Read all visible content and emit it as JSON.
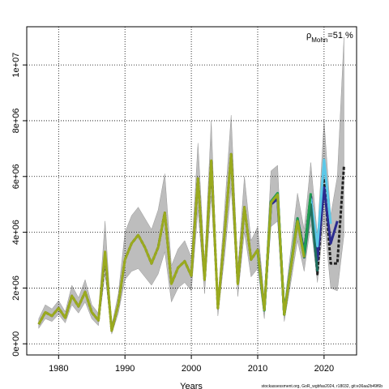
{
  "chart_data": {
    "type": "line",
    "x_label": "Years",
    "annotation": {
      "symbol": "ρ",
      "sub": "Mohn",
      "text": "=51 %"
    },
    "footer": "stockassessment.org, GoR_wgbfas2024, r18032, git:e36aa2b49f6b",
    "x": [
      1977,
      1978,
      1979,
      1980,
      1981,
      1982,
      1983,
      1984,
      1985,
      1986,
      1987,
      1988,
      1989,
      1990,
      1991,
      1992,
      1993,
      1994,
      1995,
      1996,
      1997,
      1998,
      1999,
      2000,
      2001,
      2002,
      2003,
      2004,
      2005,
      2006,
      2007,
      2008,
      2009,
      2010,
      2011,
      2012,
      2013,
      2014,
      2015,
      2016,
      2017,
      2018,
      2019,
      2020,
      2021,
      2022,
      2023
    ],
    "xlim": [
      1975.2,
      2024.9
    ],
    "xticks": [
      1980,
      1990,
      2000,
      2010,
      2020
    ],
    "ylim": [
      -400000.0,
      11370000.0
    ],
    "yticks": [
      {
        "value": 0,
        "label": "0e+00"
      },
      {
        "value": 2000000.0,
        "label": "2e+06"
      },
      {
        "value": 4000000.0,
        "label": "4e+06"
      },
      {
        "value": 6000000.0,
        "label": "6e+06"
      },
      {
        "value": 8000000.0,
        "label": "8e+06"
      },
      {
        "value": 10000000.0,
        "label": "1e+07"
      }
    ],
    "grid": true,
    "band": {
      "color": "#bdbdbd",
      "lower": [
        550000.0,
        900000.0,
        800000.0,
        1050000.0,
        750000.0,
        1400000.0,
        1100000.0,
        1500000.0,
        900000.0,
        650000.0,
        2500000.0,
        350000.0,
        1100000.0,
        2300000.0,
        2600000.0,
        2700000.0,
        2400000.0,
        2100000.0,
        2500000.0,
        3300000.0,
        1500000.0,
        2000000.0,
        2200000.0,
        1900000.0,
        4800000.0,
        1800000.0,
        5300000.0,
        1000000.0,
        3100000.0,
        5600000.0,
        1700000.0,
        4000000.0,
        2400000.0,
        2700000.0,
        900000.0,
        4200000.0,
        4400000.0,
        800000.0,
        2200000.0,
        3700000.0,
        2600000.0,
        4300000.0,
        2200000.0,
        4500000.0,
        2000000.0,
        1900000.0,
        3900000.0
      ],
      "upper": [
        900000.0,
        1400000.0,
        1250000.0,
        1550000.0,
        1150000.0,
        2100000.0,
        1650000.0,
        2300000.0,
        1400000.0,
        1100000.0,
        4400000.0,
        650000.0,
        1800000.0,
        4000000.0,
        4600000.0,
        4900000.0,
        4500000.0,
        4100000.0,
        4800000.0,
        6100000.0,
        2800000.0,
        3400000.0,
        3700000.0,
        3100000.0,
        7200000.0,
        2900000.0,
        8000000.0,
        1600000.0,
        4800000.0,
        8200000.0,
        2700000.0,
        6000000.0,
        3700000.0,
        4200000.0,
        1600000.0,
        6200000.0,
        6400000.0,
        1350000.0,
        3400000.0,
        5400000.0,
        4100000.0,
        6500000.0,
        3900000.0,
        8000000.0,
        4600000.0,
        6000000.0,
        11000000.0
      ]
    },
    "series": [
      {
        "color": "#222222",
        "dash": true,
        "values": [
          700000.0,
          1130000.0,
          1000000.0,
          1280000.0,
          930000.0,
          1720000.0,
          1340000.0,
          1860000.0,
          1130000.0,
          840000.0,
          3170000.0,
          470000.0,
          1420000.0,
          3020000.0,
          3600000.0,
          3900000.0,
          3460000.0,
          2880000.0,
          3460000.0,
          4700000.0,
          2150000.0,
          2730000.0,
          2960000.0,
          2440000.0,
          5930000.0,
          2300000.0,
          6570000.0,
          1280000.0,
          3900000.0,
          6800000.0,
          2150000.0,
          4900000.0,
          3020000.0,
          3370000.0,
          1220000.0,
          5060000.0,
          5350000.0,
          1050000.0,
          2730000.0,
          4480000.0,
          3310000.0,
          5350000.0,
          2500000.0,
          5930000.0,
          2880000.0,
          2880000.0,
          6370000.0
        ]
      },
      {
        "color": "#2b2b8f",
        "values": [
          null,
          null,
          null,
          null,
          null,
          null,
          null,
          null,
          null,
          null,
          null,
          null,
          null,
          null,
          null,
          null,
          null,
          null,
          null,
          null,
          null,
          null,
          null,
          null,
          null,
          null,
          null,
          null,
          null,
          null,
          null,
          null,
          null,
          3400000.0,
          1200000.0,
          5000000.0,
          5200000.0,
          1050000.0,
          2750000.0,
          4500000.0,
          3300000.0,
          5300000.0,
          3000000.0,
          5600000.0,
          3600000.0,
          4400000.0,
          null
        ]
      },
      {
        "color": "#5bc8e8",
        "values": [
          null,
          null,
          null,
          null,
          null,
          null,
          null,
          null,
          null,
          null,
          null,
          null,
          null,
          null,
          null,
          null,
          null,
          null,
          null,
          null,
          null,
          null,
          null,
          null,
          null,
          null,
          null,
          null,
          null,
          null,
          null,
          null,
          null,
          3350000.0,
          1200000.0,
          5100000.0,
          5400000.0,
          1050000.0,
          2750000.0,
          4450000.0,
          3200000.0,
          5200000.0,
          3500000.0,
          6600000.0,
          4300000.0,
          null,
          null
        ]
      },
      {
        "color": "#1f6f5f",
        "values": [
          null,
          null,
          null,
          null,
          null,
          null,
          null,
          null,
          null,
          null,
          null,
          null,
          null,
          null,
          null,
          null,
          null,
          null,
          null,
          null,
          null,
          null,
          null,
          null,
          null,
          null,
          null,
          null,
          null,
          null,
          null,
          null,
          null,
          3350000.0,
          1200000.0,
          5100000.0,
          5400000.0,
          1050000.0,
          2750000.0,
          4400000.0,
          3100000.0,
          5000000.0,
          2600000.0,
          null,
          null,
          null,
          null
        ]
      },
      {
        "color": "#1e9e50",
        "values": [
          null,
          null,
          null,
          null,
          null,
          null,
          null,
          null,
          null,
          null,
          null,
          null,
          null,
          null,
          null,
          null,
          null,
          null,
          null,
          null,
          null,
          null,
          null,
          null,
          null,
          null,
          null,
          null,
          null,
          null,
          null,
          null,
          null,
          3300000.0,
          1200000.0,
          5100000.0,
          5400000.0,
          1050000.0,
          2800000.0,
          4500000.0,
          3200000.0,
          5400000.0,
          null,
          null,
          null,
          null,
          null
        ]
      },
      {
        "color": "#9aaa1e",
        "values": [
          700000.0,
          1130000.0,
          1000000.0,
          1280000.0,
          930000.0,
          1720000.0,
          1340000.0,
          1860000.0,
          1130000.0,
          840000.0,
          3300000.0,
          470000.0,
          1420000.0,
          3020000.0,
          3600000.0,
          3900000.0,
          3460000.0,
          2880000.0,
          3460000.0,
          4700000.0,
          2150000.0,
          2730000.0,
          2960000.0,
          2440000.0,
          5930000.0,
          2300000.0,
          6570000.0,
          1280000.0,
          3900000.0,
          6800000.0,
          2150000.0,
          4900000.0,
          3020000.0,
          3370000.0,
          1220000.0,
          5060000.0,
          5350000.0,
          1050000.0,
          2730000.0,
          4400000.0,
          3100000.0,
          null,
          null,
          null,
          null,
          null,
          null
        ]
      }
    ]
  }
}
